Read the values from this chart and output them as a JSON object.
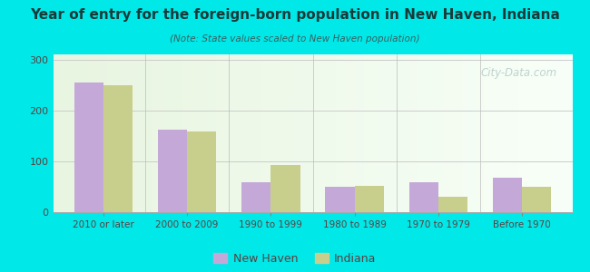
{
  "title": "Year of entry for the foreign-born population in New Haven, Indiana",
  "subtitle": "(Note: State values scaled to New Haven population)",
  "categories": [
    "2010 or later",
    "2000 to 2009",
    "1990 to 1999",
    "1980 to 1989",
    "1970 to 1979",
    "Before 1970"
  ],
  "new_haven_values": [
    255,
    162,
    58,
    50,
    58,
    68
  ],
  "indiana_values": [
    250,
    158,
    92,
    52,
    30,
    50
  ],
  "new_haven_color": "#c4a8d8",
  "indiana_color": "#c8cf8c",
  "background_color": "#00e8e8",
  "ylim": [
    0,
    310
  ],
  "yticks": [
    0,
    100,
    200,
    300
  ],
  "bar_width": 0.35,
  "watermark": "City-Data.com",
  "title_color": "#1a3a3a",
  "subtitle_color": "#3a6060",
  "tick_color": "#5a4040",
  "grid_color": "#cccccc"
}
